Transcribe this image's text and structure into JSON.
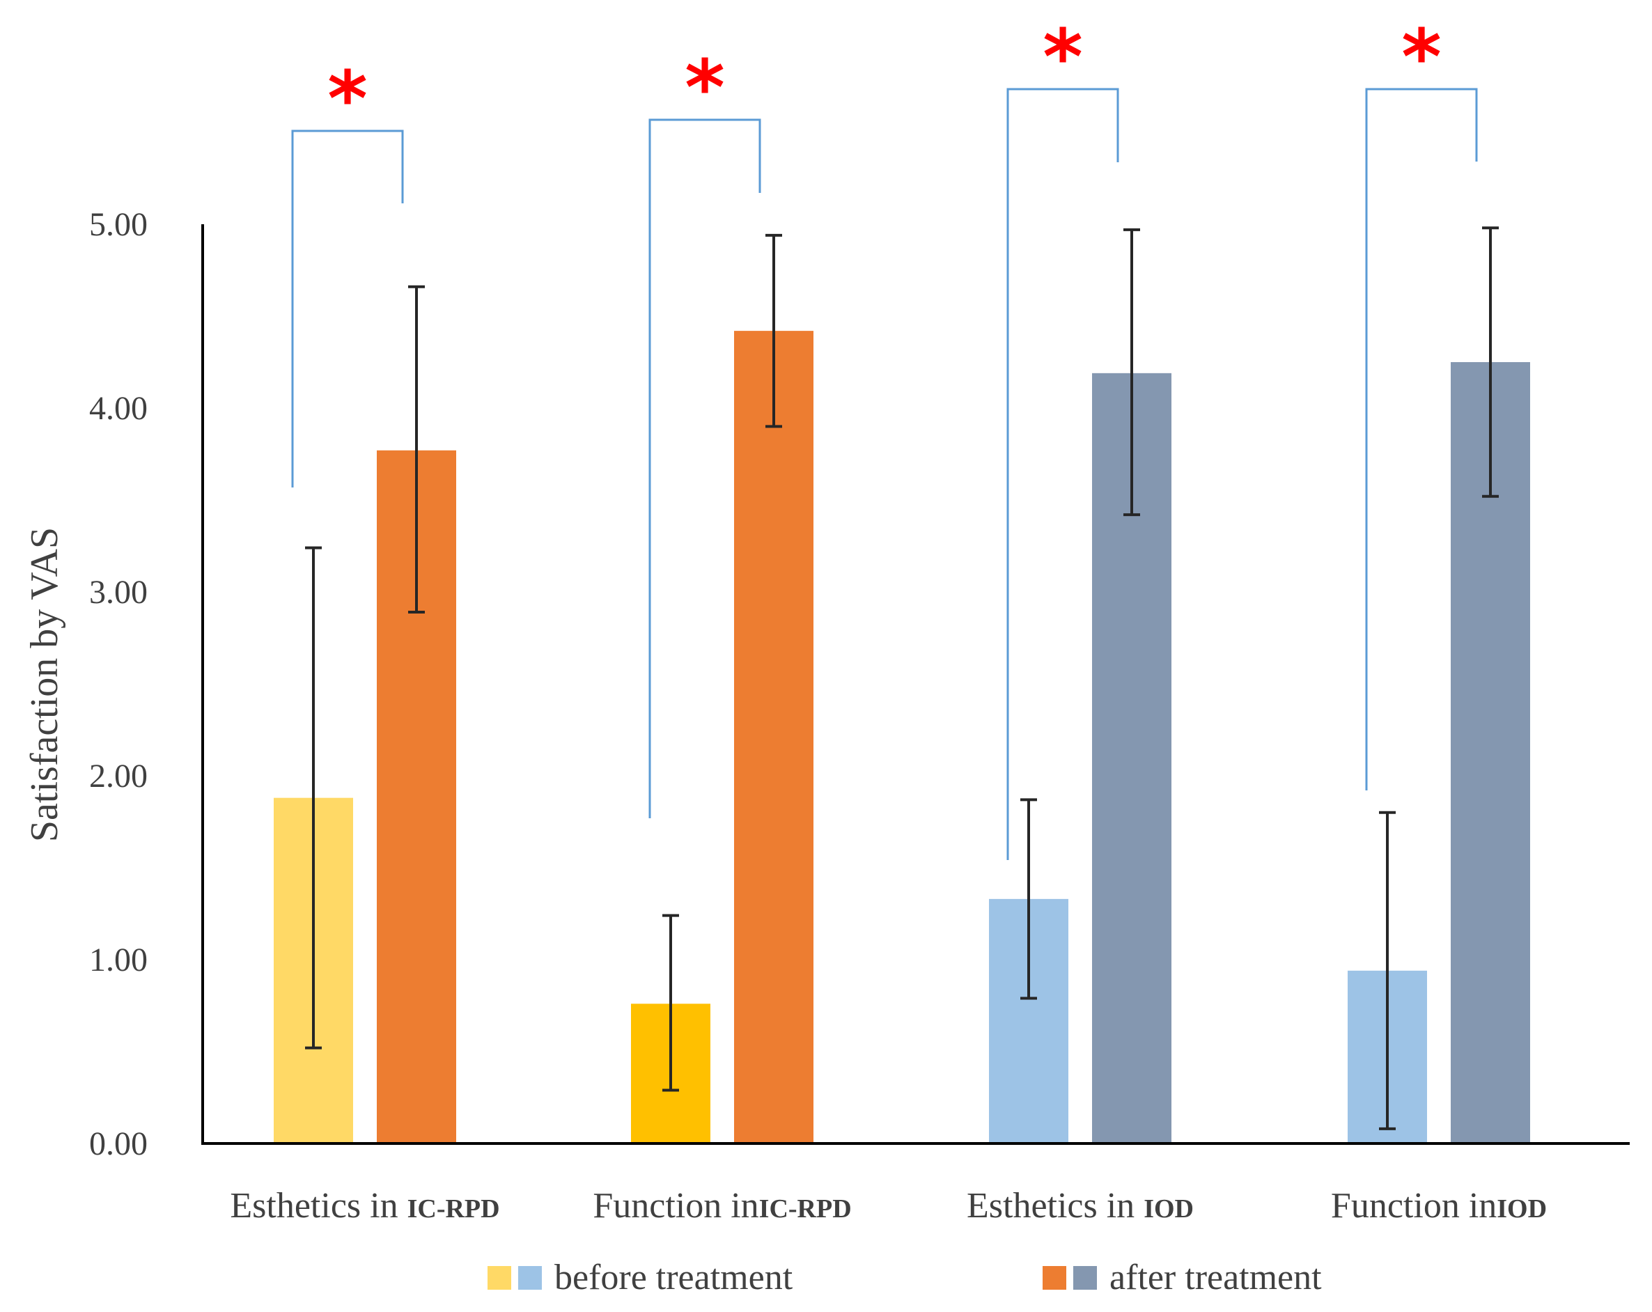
{
  "chart_data": {
    "type": "bar",
    "ylabel": "Satisfaction by VAS",
    "ylim": [
      0,
      5
    ],
    "yticks": [
      "0.00",
      "1.00",
      "2.00",
      "3.00",
      "4.00",
      "5.00"
    ],
    "grid": false,
    "categories": [
      {
        "main": "Esthetics in ",
        "suffix": "IC-RPD"
      },
      {
        "main": "Function in",
        "suffix": "IC-RPD"
      },
      {
        "main": "Esthetics in ",
        "suffix": "IOD"
      },
      {
        "main": "Function in",
        "suffix": "IOD"
      }
    ],
    "series": [
      {
        "name": "before treatment",
        "values": [
          1.88,
          0.76,
          1.33,
          0.94
        ],
        "err_low": [
          0.52,
          0.29,
          0.79,
          0.08
        ],
        "err_high": [
          3.24,
          1.24,
          1.87,
          1.8
        ],
        "colors": [
          "#FFD966",
          "#FFC000",
          "#9DC3E6",
          "#9DC3E6"
        ]
      },
      {
        "name": "after treatment",
        "values": [
          3.77,
          4.42,
          4.19,
          4.25
        ],
        "err_low": [
          2.89,
          3.9,
          3.42,
          3.52
        ],
        "err_high": [
          4.66,
          4.94,
          4.97,
          4.98
        ],
        "colors": [
          "#ED7D31",
          "#ED7D31",
          "#8497B0",
          "#8497B0"
        ]
      }
    ],
    "significance_marker": "*",
    "legend": {
      "placement": "bottom",
      "entries": [
        {
          "label": "before treatment",
          "swatches": [
            "#FFD966",
            "#9DC3E6"
          ]
        },
        {
          "label": "after treatment",
          "swatches": [
            "#ED7D31",
            "#8497B0"
          ]
        }
      ]
    },
    "bracket_color": "#5B9BD5"
  }
}
